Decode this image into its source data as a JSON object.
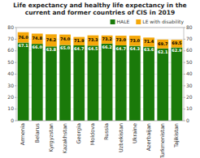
{
  "chart_data": {
    "type": "bar",
    "title": "Life expectancy and healthy life expectancy in the current and former countries of CIS in 2019",
    "categories": [
      "Armenia",
      "Belarus",
      "Kyrgyzstan",
      "Kazakhstan",
      "Georgia",
      "Moldova",
      "Russia",
      "Uzbekistan",
      "Ukraine",
      "Azerbaijan",
      "Turkmenistan",
      "Tajikistan"
    ],
    "series": [
      {
        "name": "HALE",
        "color": "#1a7a0a",
        "values": [
          67.1,
          66.0,
          63.8,
          65.0,
          64.7,
          64.5,
          66.2,
          64.7,
          64.3,
          63.6,
          62.1,
          62.9
        ],
        "value_labels": [
          "67.1",
          "66.0",
          "63.8",
          "65.0",
          "64.7",
          "64.5",
          "66.2",
          "64.7",
          "64.3",
          "63.6",
          "62.1",
          "62.9"
        ]
      },
      {
        "name": "LE with disability",
        "color": "#f5a80a",
        "values": [
          8.9,
          8.8,
          10.4,
          9.0,
          7.2,
          8.8,
          7.0,
          8.3,
          8.7,
          7.8,
          7.6,
          6.6
        ],
        "totals": [
          76.0,
          74.8,
          74.2,
          74.0,
          71.9,
          73.3,
          73.2,
          73.0,
          73.0,
          71.4,
          69.7,
          69.5
        ],
        "total_labels": [
          "76.0",
          "74.8",
          "74.2",
          "74.0",
          "71.9",
          "73.3",
          "73.2",
          "73.0",
          "73.0",
          "71.4",
          "69.7",
          "69.5"
        ]
      }
    ],
    "ylim": [
      0,
      80
    ],
    "yticks": [
      0,
      10,
      20,
      30,
      40,
      50,
      60,
      70,
      80
    ],
    "y2lim": [
      0,
      80
    ],
    "y2ticks": [
      0,
      10,
      20,
      30,
      40,
      50,
      60,
      70,
      80
    ],
    "stacked": true,
    "grid": true,
    "legend": "upper right",
    "data_labels": true
  }
}
